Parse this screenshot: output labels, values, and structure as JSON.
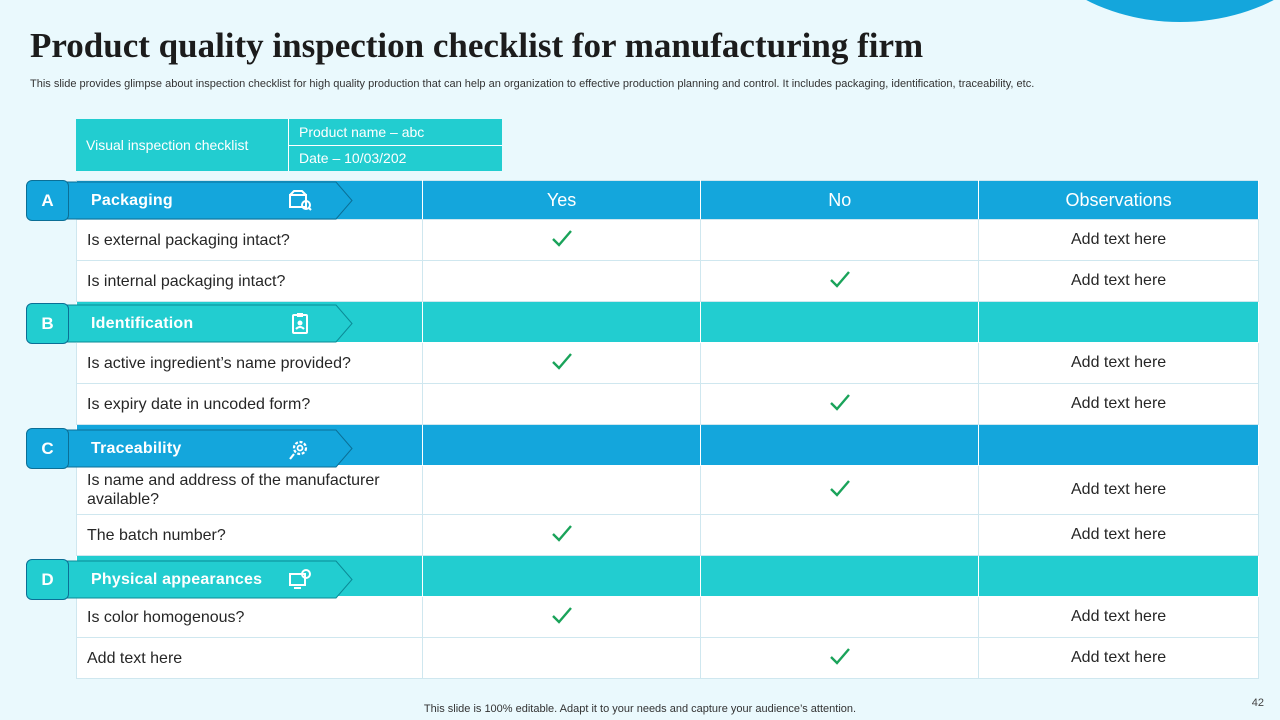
{
  "title": "Product quality inspection checklist for manufacturing firm",
  "subtitle": "This slide provides glimpse about inspection checklist for high quality production that can help an organization to effective production planning and control. It includes packaging, identification, traceability, etc.",
  "info": {
    "label": "Visual inspection checklist",
    "product": "Product name – abc",
    "date": "Date – 10/03/202"
  },
  "headers": {
    "yes": "Yes",
    "no": "No",
    "obs": "Observations"
  },
  "sections": [
    {
      "letter": "A",
      "name": "Packaging",
      "color": "#14a6dc",
      "icon": "box-icon"
    },
    {
      "letter": "B",
      "name": "Identification",
      "color": "#22cdd0",
      "icon": "id-badge-icon"
    },
    {
      "letter": "C",
      "name": "Traceability",
      "color": "#14a6dc",
      "icon": "gear-search-icon"
    },
    {
      "letter": "D",
      "name": "Physical  appearances",
      "color": "#22cdd0",
      "icon": "monitor-icon"
    }
  ],
  "rows": [
    {
      "q": "Is external packaging intact?",
      "yes": true,
      "no": false,
      "obs": "Add text here"
    },
    {
      "q": "Is internal packaging intact?",
      "yes": false,
      "no": true,
      "obs": "Add text here"
    },
    {
      "q": "Is active ingredient’s name provided?",
      "yes": true,
      "no": false,
      "obs": "Add text here"
    },
    {
      "q": "Is expiry date in uncoded form?",
      "yes": false,
      "no": true,
      "obs": "Add text here"
    },
    {
      "q": "Is name and address of the manufacturer available?",
      "yes": false,
      "no": true,
      "obs": "Add text here"
    },
    {
      "q": "The batch number?",
      "yes": true,
      "no": false,
      "obs": "Add text here"
    },
    {
      "q": "Is color homogenous?",
      "yes": true,
      "no": false,
      "obs": "Add text here"
    },
    {
      "q": "Add text here",
      "yes": false,
      "no": true,
      "obs": "Add text here"
    }
  ],
  "footer": "This slide is 100% editable. Adapt it to your needs and capture your audience’s attention.",
  "page_number": "42",
  "colors": {
    "blue": "#14a6dc",
    "teal": "#22cdd0",
    "check": "#1aa35a"
  }
}
